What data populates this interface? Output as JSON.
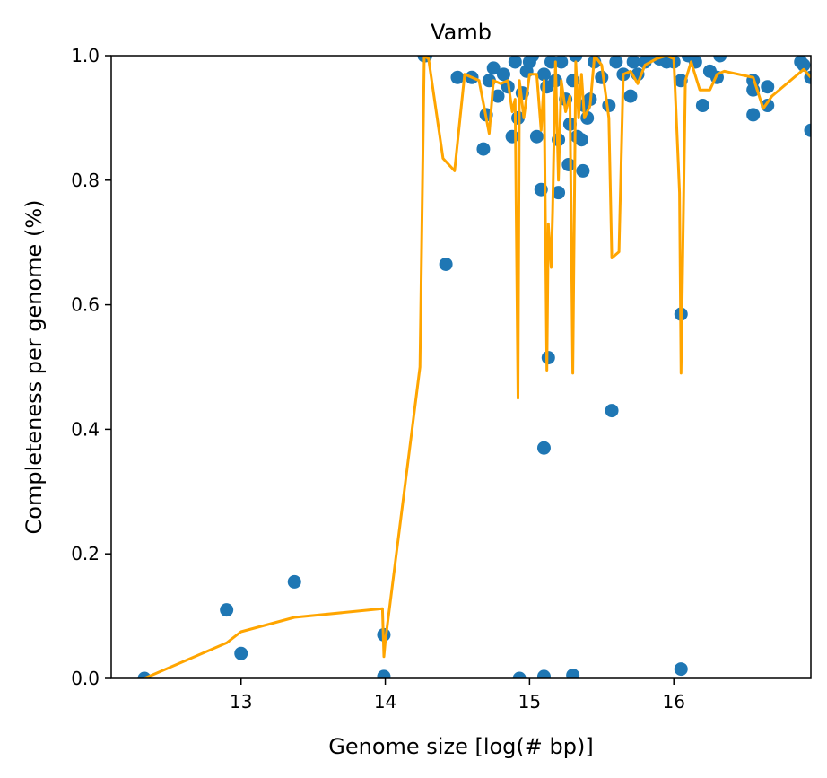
{
  "chart_data": {
    "type": "scatter",
    "title": "Vamb",
    "xlabel": "Genome size [log(# bp)]",
    "ylabel": "Completeness per genome (%)",
    "xlim": [
      12.1,
      16.95
    ],
    "ylim": [
      0.0,
      1.0
    ],
    "grid": false,
    "legend": "none",
    "x_ticks": [
      13,
      14,
      15,
      16
    ],
    "x_tick_labels": [
      "13",
      "14",
      "15",
      "16"
    ],
    "y_ticks": [
      0.0,
      0.2,
      0.4,
      0.6,
      0.8,
      1.0
    ],
    "y_tick_labels": [
      "0.0",
      "0.2",
      "0.4",
      "0.6",
      "0.8",
      "1.0"
    ],
    "series": [
      {
        "kind": "scatter",
        "color": "#1f77b4",
        "points": [
          [
            12.33,
            0.0
          ],
          [
            12.9,
            0.11
          ],
          [
            13.0,
            0.04
          ],
          [
            13.37,
            0.155
          ],
          [
            13.99,
            0.07
          ],
          [
            13.99,
            0.003
          ],
          [
            14.27,
            1.0
          ],
          [
            14.28,
            1.0
          ],
          [
            14.42,
            0.665
          ],
          [
            14.5,
            0.965
          ],
          [
            14.6,
            0.965
          ],
          [
            14.68,
            0.85
          ],
          [
            14.7,
            0.905
          ],
          [
            14.72,
            0.96
          ],
          [
            14.75,
            0.98
          ],
          [
            14.78,
            0.935
          ],
          [
            14.82,
            0.97
          ],
          [
            14.85,
            0.95
          ],
          [
            14.88,
            0.87
          ],
          [
            14.9,
            0.99
          ],
          [
            14.92,
            0.9
          ],
          [
            14.93,
            0.0
          ],
          [
            14.95,
            0.94
          ],
          [
            14.98,
            0.975
          ],
          [
            15.0,
            0.99
          ],
          [
            15.02,
            1.0
          ],
          [
            15.05,
            0.87
          ],
          [
            15.08,
            0.785
          ],
          [
            15.1,
            0.97
          ],
          [
            15.1,
            0.37
          ],
          [
            15.1,
            0.003
          ],
          [
            15.12,
            0.95
          ],
          [
            15.13,
            0.515
          ],
          [
            15.15,
            0.99
          ],
          [
            15.18,
            0.96
          ],
          [
            15.2,
            0.865
          ],
          [
            15.2,
            0.78
          ],
          [
            15.22,
            0.99
          ],
          [
            15.25,
            0.93
          ],
          [
            15.27,
            0.825
          ],
          [
            15.28,
            0.89
          ],
          [
            15.3,
            0.96
          ],
          [
            15.3,
            0.005
          ],
          [
            15.32,
            1.0
          ],
          [
            15.33,
            0.87
          ],
          [
            15.36,
            0.865
          ],
          [
            15.37,
            0.815
          ],
          [
            15.38,
            0.92
          ],
          [
            15.4,
            0.9
          ],
          [
            15.42,
            0.93
          ],
          [
            15.45,
            0.99
          ],
          [
            15.5,
            0.965
          ],
          [
            15.55,
            0.92
          ],
          [
            15.57,
            0.43
          ],
          [
            15.6,
            0.99
          ],
          [
            15.65,
            0.97
          ],
          [
            15.7,
            0.935
          ],
          [
            15.72,
            0.99
          ],
          [
            15.75,
            0.97
          ],
          [
            15.8,
            0.99
          ],
          [
            15.85,
            1.0
          ],
          [
            15.9,
            0.995
          ],
          [
            15.95,
            0.99
          ],
          [
            16.0,
            0.99
          ],
          [
            16.05,
            0.96
          ],
          [
            16.05,
            0.585
          ],
          [
            16.05,
            0.015
          ],
          [
            16.1,
            1.0
          ],
          [
            16.15,
            0.99
          ],
          [
            16.2,
            0.92
          ],
          [
            16.25,
            0.975
          ],
          [
            16.3,
            0.965
          ],
          [
            16.32,
            1.0
          ],
          [
            16.55,
            0.96
          ],
          [
            16.55,
            0.945
          ],
          [
            16.55,
            0.905
          ],
          [
            16.65,
            0.95
          ],
          [
            16.65,
            0.92
          ],
          [
            16.88,
            0.99
          ],
          [
            16.9,
            0.985
          ],
          [
            16.95,
            0.965
          ],
          [
            16.95,
            0.88
          ]
        ]
      },
      {
        "kind": "line",
        "color": "#ffa500",
        "points": [
          [
            12.33,
            0.0
          ],
          [
            12.9,
            0.057
          ],
          [
            13.0,
            0.075
          ],
          [
            13.37,
            0.098
          ],
          [
            13.98,
            0.112
          ],
          [
            13.99,
            0.035
          ],
          [
            14.0,
            0.06
          ],
          [
            14.24,
            0.5
          ],
          [
            14.27,
            1.0
          ],
          [
            14.3,
            0.995
          ],
          [
            14.4,
            0.835
          ],
          [
            14.48,
            0.815
          ],
          [
            14.55,
            0.97
          ],
          [
            14.65,
            0.96
          ],
          [
            14.72,
            0.875
          ],
          [
            14.75,
            0.96
          ],
          [
            14.8,
            0.955
          ],
          [
            14.85,
            0.96
          ],
          [
            14.88,
            0.91
          ],
          [
            14.9,
            0.93
          ],
          [
            14.92,
            0.45
          ],
          [
            14.93,
            0.96
          ],
          [
            14.96,
            0.9
          ],
          [
            15.0,
            0.97
          ],
          [
            15.05,
            0.97
          ],
          [
            15.08,
            0.88
          ],
          [
            15.1,
            0.96
          ],
          [
            15.12,
            0.495
          ],
          [
            15.13,
            0.73
          ],
          [
            15.15,
            0.66
          ],
          [
            15.16,
            0.75
          ],
          [
            15.18,
            0.99
          ],
          [
            15.2,
            0.8
          ],
          [
            15.22,
            0.96
          ],
          [
            15.25,
            0.91
          ],
          [
            15.28,
            0.935
          ],
          [
            15.3,
            0.49
          ],
          [
            15.32,
            0.99
          ],
          [
            15.34,
            0.9
          ],
          [
            15.36,
            0.97
          ],
          [
            15.38,
            0.9
          ],
          [
            15.42,
            0.92
          ],
          [
            15.45,
            1.0
          ],
          [
            15.5,
            0.985
          ],
          [
            15.55,
            0.9
          ],
          [
            15.57,
            0.675
          ],
          [
            15.62,
            0.685
          ],
          [
            15.65,
            0.97
          ],
          [
            15.7,
            0.975
          ],
          [
            15.75,
            0.955
          ],
          [
            15.8,
            0.985
          ],
          [
            15.88,
            0.995
          ],
          [
            15.95,
            1.0
          ],
          [
            16.0,
            0.995
          ],
          [
            16.04,
            0.78
          ],
          [
            16.05,
            0.49
          ],
          [
            16.08,
            0.96
          ],
          [
            16.12,
            0.99
          ],
          [
            16.18,
            0.945
          ],
          [
            16.25,
            0.945
          ],
          [
            16.3,
            0.97
          ],
          [
            16.35,
            0.975
          ],
          [
            16.55,
            0.965
          ],
          [
            16.62,
            0.915
          ],
          [
            16.68,
            0.935
          ],
          [
            16.9,
            0.978
          ],
          [
            16.95,
            0.965
          ]
        ]
      }
    ]
  }
}
